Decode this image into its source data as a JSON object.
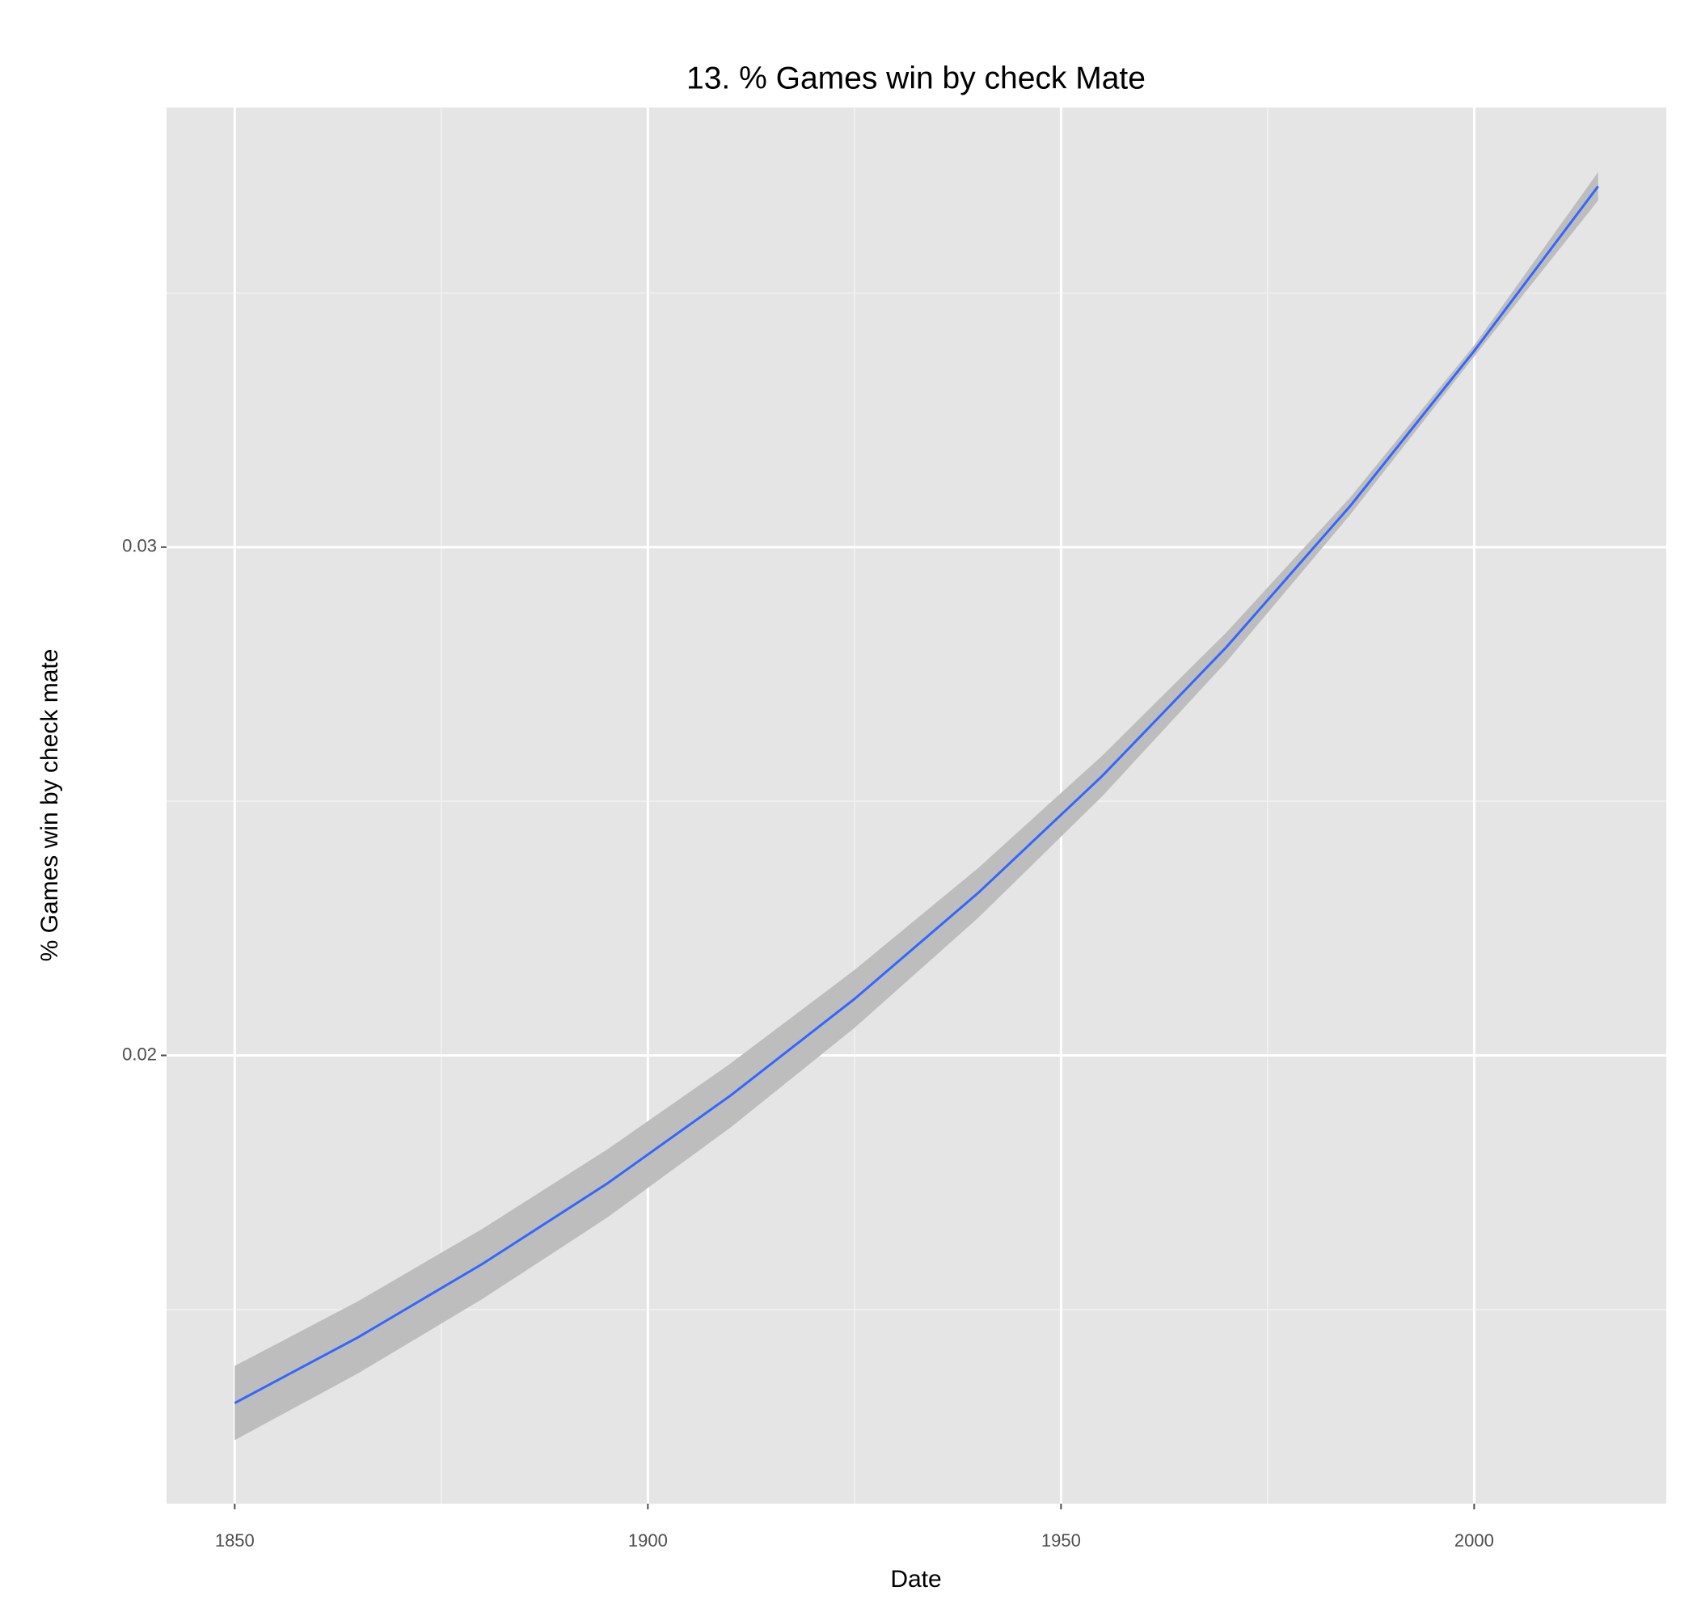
{
  "chart_data": {
    "type": "line",
    "title": "13. % Games win by check Mate",
    "xlabel": "Date",
    "ylabel": "% Games win by check mate",
    "x": [
      1850,
      1865,
      1880,
      1895,
      1910,
      1925,
      1940,
      1955,
      1970,
      1985,
      2000,
      2015
    ],
    "values": [
      0.01316,
      0.01446,
      0.0159,
      0.01747,
      0.01921,
      0.02111,
      0.0232,
      0.0255,
      0.02803,
      0.03081,
      0.03386,
      0.0371
    ],
    "lower": [
      0.01243,
      0.01375,
      0.01521,
      0.0168,
      0.01858,
      0.02054,
      0.02271,
      0.0251,
      0.02774,
      0.03064,
      0.03375,
      0.03682
    ],
    "upper": [
      0.01389,
      0.01517,
      0.01659,
      0.01814,
      0.01984,
      0.02168,
      0.02369,
      0.0259,
      0.02832,
      0.03098,
      0.03397,
      0.03738
    ],
    "color": "#3366ff",
    "band_color": "#bdbdbd",
    "xlim": [
      1841.75,
      2023.25
    ],
    "ylim": [
      0.01118,
      0.03865
    ],
    "xticks": [
      1850,
      1900,
      1950,
      2000
    ],
    "yticks": [
      0.02,
      0.03
    ],
    "x_minor_ticks": [
      1875,
      1925,
      1975
    ],
    "y_minor_ticks": [
      0.015,
      0.025,
      0.035
    ],
    "grid": true
  }
}
